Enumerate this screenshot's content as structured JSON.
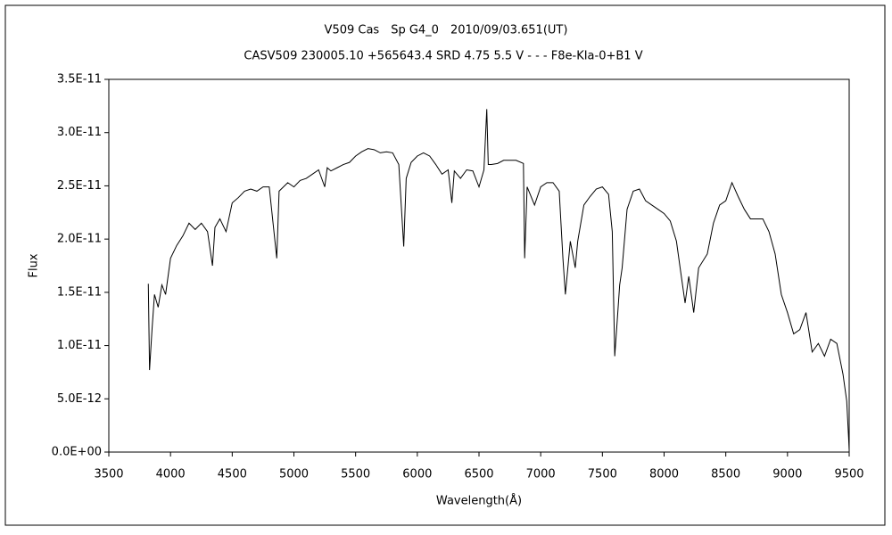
{
  "chart_data": {
    "type": "line",
    "title": "V509 Cas　Sp G4_0　2010/09/03.651(UT)",
    "subtitle": "CASV509 230005.10 +565643.4 SRD 4.75 5.5 V - - - F8e-KIa-0+B1 V",
    "x_label": "Wavelength(Å)",
    "y_label": "Flux",
    "color": "#000000",
    "grid": false,
    "xlim": [
      3500,
      9500
    ],
    "xticks": [
      3500,
      4000,
      4500,
      5000,
      5500,
      6000,
      6500,
      7000,
      7500,
      8000,
      8500,
      9000,
      9500
    ],
    "ylim": [
      0,
      3.5e-11
    ],
    "yticks": [
      {
        "value": 0,
        "label": "0.0E+00"
      },
      {
        "value": 5e-12,
        "label": "5.0E-12"
      },
      {
        "value": 1e-11,
        "label": "1.0E-11"
      },
      {
        "value": 1.5e-11,
        "label": "1.5E-11"
      },
      {
        "value": 2e-11,
        "label": "2.0E-11"
      },
      {
        "value": 2.5e-11,
        "label": "2.5E-11"
      },
      {
        "value": 3e-11,
        "label": "3.0E-11"
      },
      {
        "value": 3.5e-11,
        "label": "3.5E-11"
      }
    ],
    "x": [
      3820,
      3830,
      3850,
      3870,
      3900,
      3930,
      3960,
      4000,
      4050,
      4100,
      4150,
      4200,
      4250,
      4300,
      4340,
      4360,
      4400,
      4450,
      4500,
      4550,
      4600,
      4650,
      4700,
      4750,
      4800,
      4861,
      4880,
      4950,
      5000,
      5050,
      5100,
      5150,
      5200,
      5250,
      5270,
      5300,
      5350,
      5400,
      5450,
      5500,
      5550,
      5600,
      5650,
      5700,
      5750,
      5800,
      5850,
      5890,
      5910,
      5950,
      6000,
      6050,
      6100,
      6150,
      6200,
      6250,
      6280,
      6300,
      6350,
      6400,
      6450,
      6500,
      6540,
      6563,
      6575,
      6600,
      6650,
      6700,
      6800,
      6860,
      6870,
      6890,
      6950,
      7000,
      7050,
      7100,
      7150,
      7180,
      7200,
      7240,
      7280,
      7300,
      7350,
      7400,
      7450,
      7500,
      7550,
      7580,
      7600,
      7620,
      7640,
      7660,
      7700,
      7750,
      7800,
      7850,
      7900,
      7950,
      8000,
      8050,
      8100,
      8130,
      8170,
      8200,
      8240,
      8280,
      8350,
      8400,
      8450,
      8500,
      8550,
      8600,
      8650,
      8700,
      8750,
      8800,
      8850,
      8900,
      8950,
      9000,
      9050,
      9100,
      9150,
      9200,
      9250,
      9300,
      9350,
      9400,
      9450,
      9480,
      9495,
      9500
    ],
    "values": [
      1.58e-11,
      7.7e-12,
      1.15e-11,
      1.48e-11,
      1.36e-11,
      1.57e-11,
      1.48e-11,
      1.82e-11,
      1.94e-11,
      2.03e-11,
      2.15e-11,
      2.09e-11,
      2.15e-11,
      2.07e-11,
      1.75e-11,
      2.11e-11,
      2.19e-11,
      2.07e-11,
      2.34e-11,
      2.39e-11,
      2.45e-11,
      2.47e-11,
      2.45e-11,
      2.49e-11,
      2.49e-11,
      1.82e-11,
      2.45e-11,
      2.53e-11,
      2.49e-11,
      2.55e-11,
      2.57e-11,
      2.61e-11,
      2.65e-11,
      2.49e-11,
      2.67e-11,
      2.64e-11,
      2.67e-11,
      2.7e-11,
      2.72e-11,
      2.78e-11,
      2.82e-11,
      2.85e-11,
      2.84e-11,
      2.81e-11,
      2.82e-11,
      2.81e-11,
      2.7e-11,
      1.93e-11,
      2.57e-11,
      2.72e-11,
      2.78e-11,
      2.81e-11,
      2.78e-11,
      2.7e-11,
      2.61e-11,
      2.65e-11,
      2.34e-11,
      2.64e-11,
      2.57e-11,
      2.65e-11,
      2.64e-11,
      2.49e-11,
      2.65e-11,
      3.22e-11,
      2.7e-11,
      2.7e-11,
      2.71e-11,
      2.74e-11,
      2.74e-11,
      2.71e-11,
      1.82e-11,
      2.49e-11,
      2.32e-11,
      2.49e-11,
      2.53e-11,
      2.53e-11,
      2.45e-11,
      1.82e-11,
      1.48e-11,
      1.98e-11,
      1.73e-11,
      1.98e-11,
      2.32e-11,
      2.4e-11,
      2.47e-11,
      2.49e-11,
      2.42e-11,
      2.07e-11,
      9e-12,
      1.23e-11,
      1.57e-11,
      1.73e-11,
      2.28e-11,
      2.45e-11,
      2.47e-11,
      2.36e-11,
      2.32e-11,
      2.28e-11,
      2.24e-11,
      2.17e-11,
      1.98e-11,
      1.73e-11,
      1.4e-11,
      1.65e-11,
      1.31e-11,
      1.73e-11,
      1.86e-11,
      2.15e-11,
      2.32e-11,
      2.36e-11,
      2.53e-11,
      2.4e-11,
      2.28e-11,
      2.19e-11,
      2.19e-11,
      2.19e-11,
      2.07e-11,
      1.86e-11,
      1.48e-11,
      1.31e-11,
      1.11e-11,
      1.15e-11,
      1.31e-11,
      9.4e-12,
      1.02e-11,
      9e-12,
      1.06e-11,
      1.02e-11,
      7.3e-12,
      4.8e-12,
      1.4e-12,
      2e-13
    ]
  }
}
